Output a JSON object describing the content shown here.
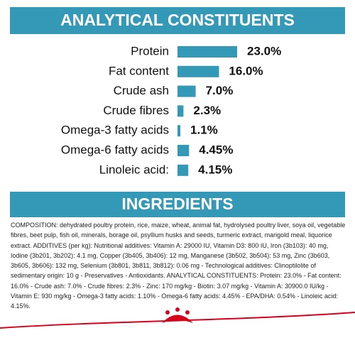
{
  "chart_data": {
    "type": "hbar",
    "title": "ANALYTICAL CONSTITUENTS",
    "categories": [
      "Protein",
      "Fat content",
      "Crude ash",
      "Crude fibres",
      "Omega-3 fatty acids",
      "Omega-6 fatty acids",
      "Linoleic acid:"
    ],
    "values": [
      23.0,
      16.0,
      7.0,
      2.3,
      1.1,
      4.45,
      4.15
    ],
    "value_labels": [
      "23.0%",
      "16.0%",
      "7.0%",
      "2.3%",
      "1.1%",
      "4.45%",
      "4.15%"
    ],
    "color": "#3399b6"
  },
  "ingredients": {
    "title": "INGREDIENTS",
    "text": "COMPOSITION: dehydrated poultry protein, rice, maize, wheat, animal fat, hydrolysed poultry liver, soya oil, vegetable fibres, beet pulp, fish oil, minerals, borage oil, psyllium husks and seeds, turmeric extract, marigold meal, liquorice extract. ADDITIVES (per kg): Nutritional additives: Vitamin A: 29000 IU, Vitamin D3: 800 IU, Iron (3b103): 40 mg, Iodine (3b201, 3b202): 4.1 mg, Copper (3b405, 3b406): 12 mg, Manganese (3b502, 3b504): 53 mg, Zinc (3b603, 3b605, 3b606): 132 mg, Selenium (3b801, 3b811, 3b812): 0.06 mg - Technological additives: Clinoptilolite of sedimentary origin: 10 g - Preservatives - Antioxidants. ANALYTICAL CONSTITUENTS: Protein: 23.0% - Fat content: 16.0% - Crude ash: 7.0% - Crude fibres: 2.3% - Zinc: 170 mg/kg - Biotin: 3.07 mg/kg - Vitamin A: 30900.0 IU/kg - Vitamin E: 930 mg/kg - Omega-3 fatty acids: 1.10% - Omega-6 fatty acids: 4.45% - EPA/DHA: 0.54% - Linoleic acid: 4.15%."
  }
}
